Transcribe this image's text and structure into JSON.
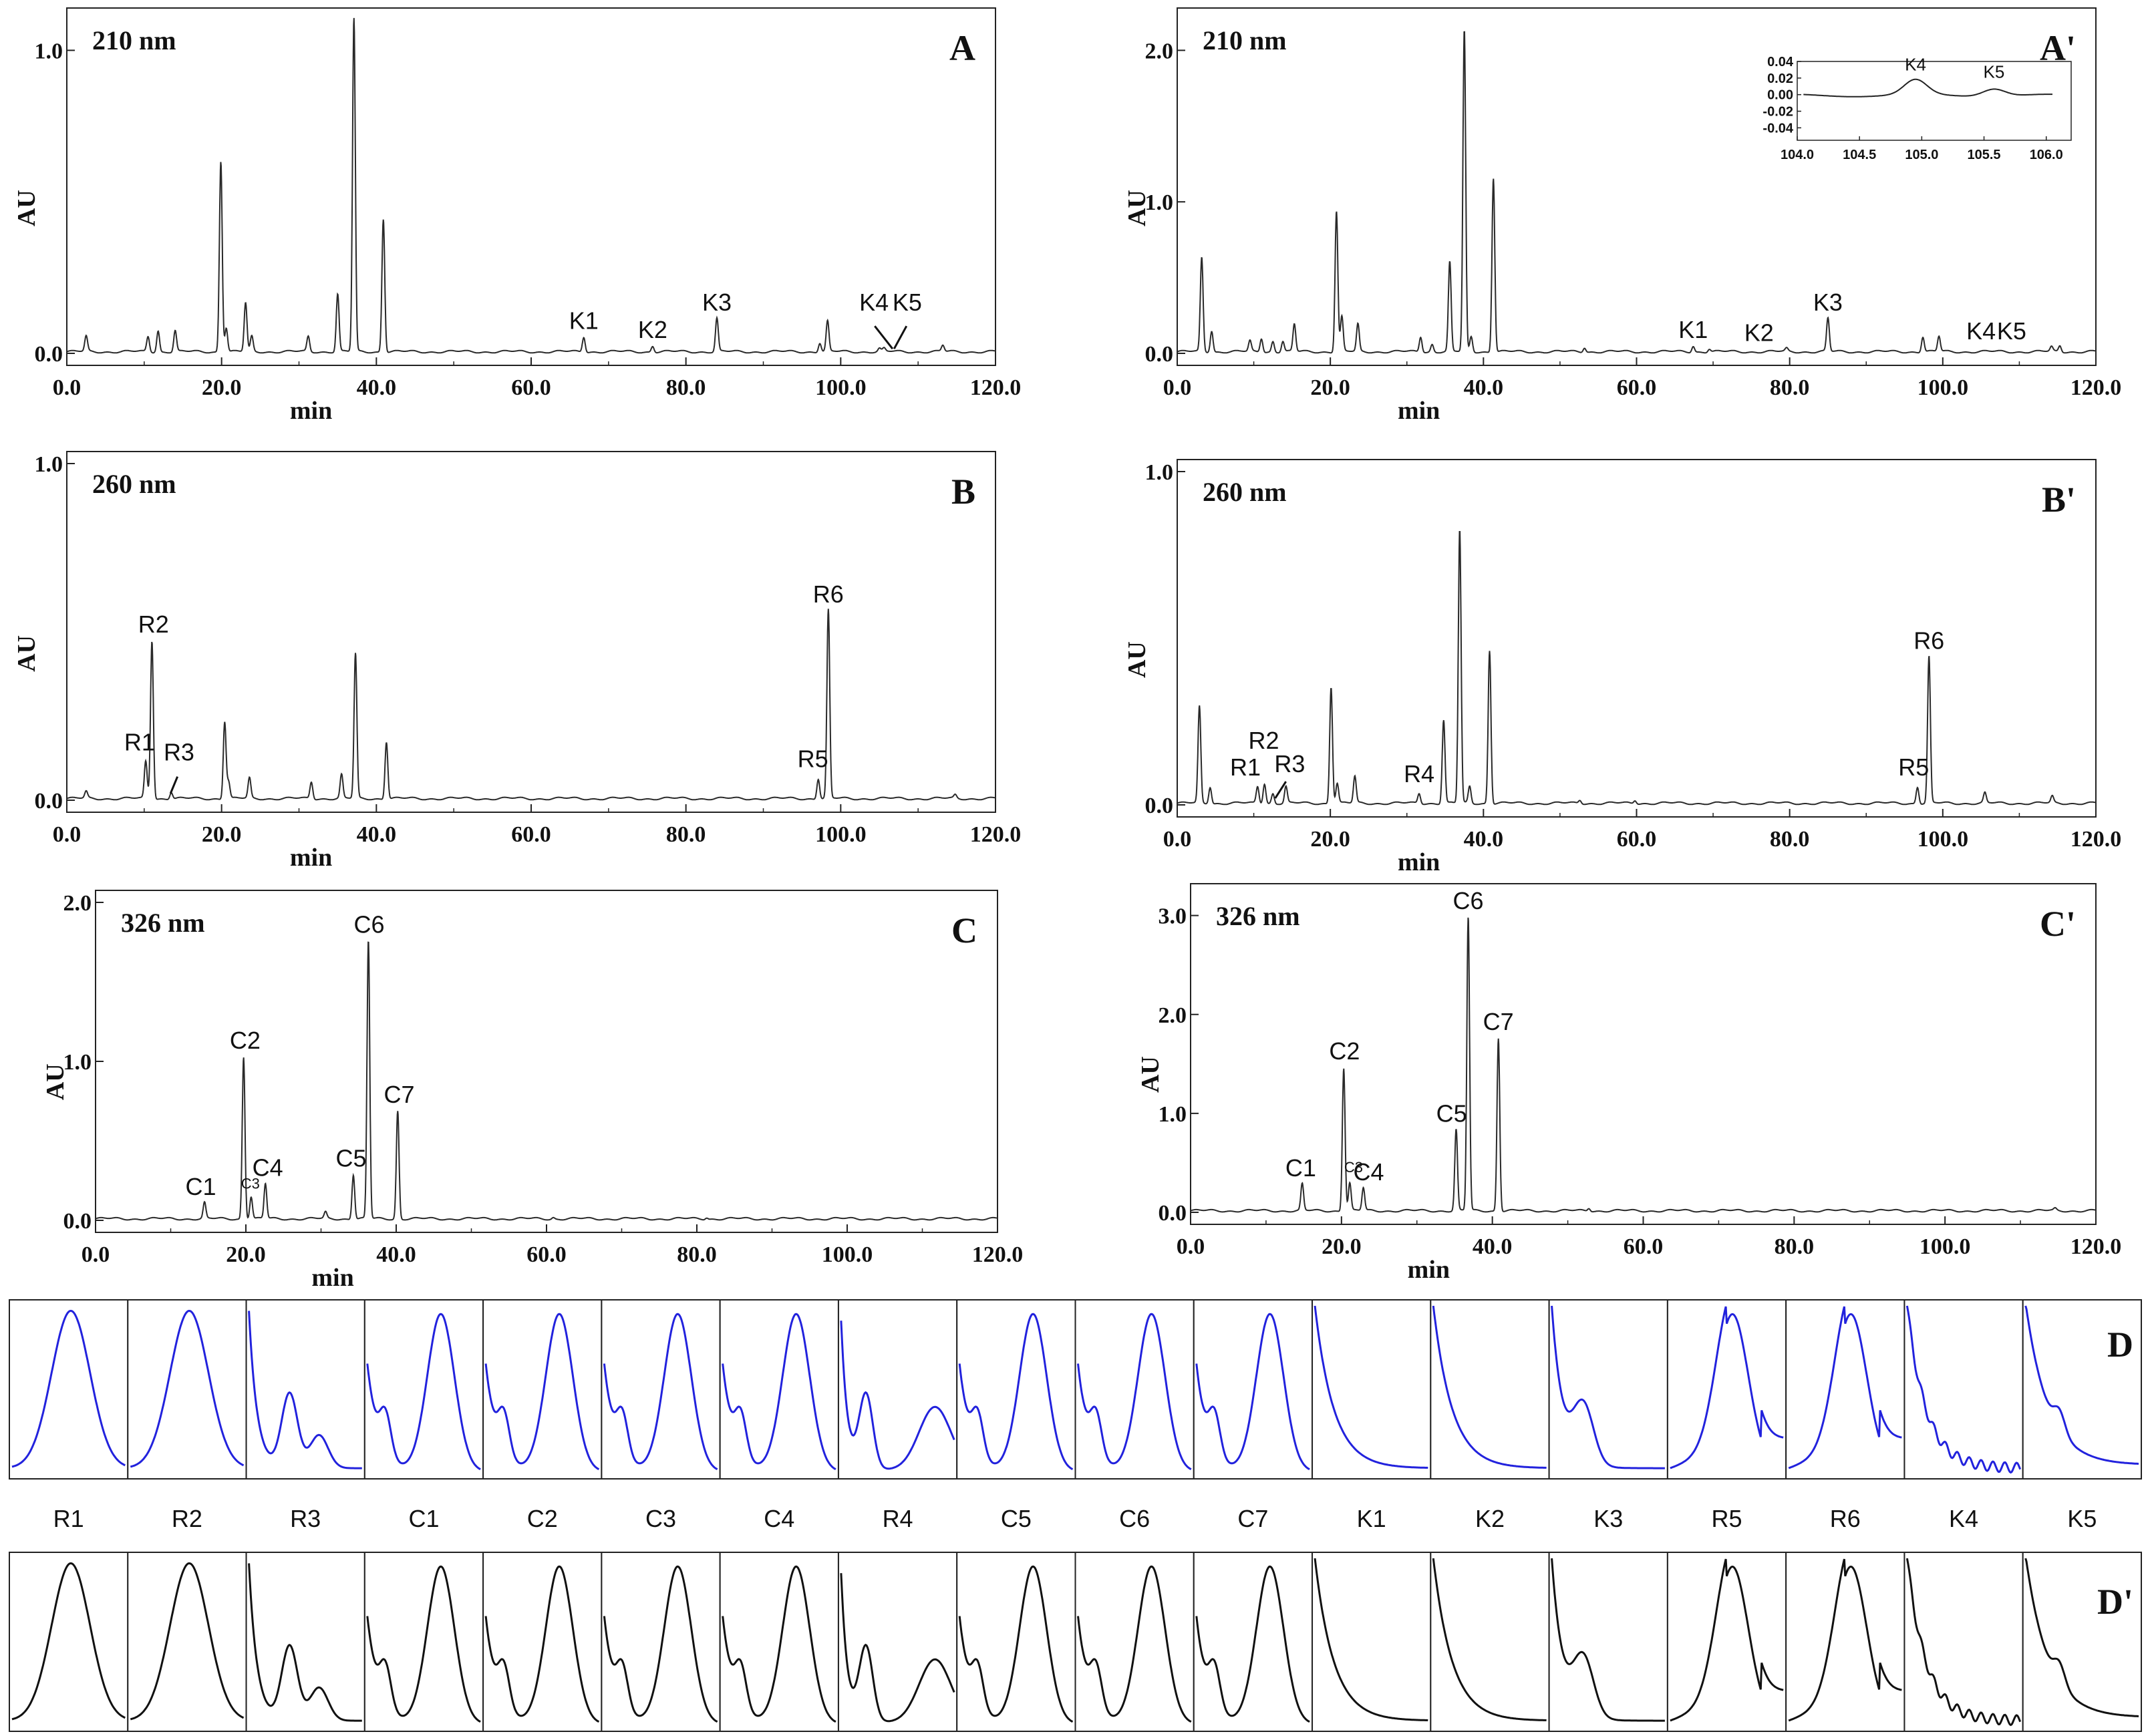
{
  "figure": {
    "spectra_row_letters": [
      "D",
      "D'"
    ]
  },
  "chart_data": [
    {
      "id": "A",
      "type": "line",
      "panel_label": "A",
      "wavelength": "210 nm",
      "xlabel": "min",
      "ylabel": "AU",
      "xlim": [
        0,
        120
      ],
      "ylim": [
        0,
        1.1
      ],
      "x_ticks": [
        "0.0",
        "20.0",
        "40.0",
        "60.0",
        "80.0",
        "100.0",
        "120.0"
      ],
      "y_ticks": [
        "0.0",
        "1.0"
      ],
      "peaks": [
        [
          2.5,
          0.05
        ],
        [
          10.5,
          0.05
        ],
        [
          11.8,
          0.07
        ],
        [
          14,
          0.07
        ],
        [
          19.9,
          0.63
        ],
        [
          20.6,
          0.08
        ],
        [
          23.1,
          0.16
        ],
        [
          23.9,
          0.05
        ],
        [
          31.2,
          0.05
        ],
        [
          35,
          0.19
        ],
        [
          37.1,
          1.1
        ],
        [
          40.9,
          0.44
        ],
        [
          66.8,
          0.05
        ],
        [
          75.7,
          0.02
        ],
        [
          84,
          0.11
        ],
        [
          97.3,
          0.03
        ],
        [
          98.3,
          0.1
        ],
        [
          105,
          0.01
        ],
        [
          105.6,
          0.01
        ],
        [
          113.2,
          0.02
        ]
      ],
      "labels": [
        {
          "text": "K1",
          "x": 66.8,
          "y": 0.05
        },
        {
          "text": "K2",
          "x": 75.7,
          "y": 0.02
        },
        {
          "text": "K3",
          "x": 84,
          "y": 0.11
        },
        {
          "text": "K4",
          "x": 104.3,
          "y": 0.11
        },
        {
          "text": "K5",
          "x": 108.6,
          "y": 0.11
        }
      ],
      "inset": {
        "xlim": [
          104,
          106.2
        ],
        "ylim": [
          -0.055,
          0.04
        ],
        "x_ticks": [
          "104.0",
          "104.5",
          "105.0",
          "105.5",
          "106.0"
        ],
        "y_ticks": [
          "0.04",
          "0.02",
          "0.00",
          "-0.02",
          "-0.04"
        ],
        "labels": []
      }
    },
    {
      "id": "A'",
      "type": "line",
      "panel_label": "A'",
      "wavelength": "210 nm",
      "xlabel": "min",
      "ylabel": "AU",
      "xlim": [
        0,
        120
      ],
      "ylim": [
        0,
        2.2
      ],
      "x_ticks": [
        "0.0",
        "20.0",
        "40.0",
        "60.0",
        "80.0",
        "100.0",
        "120.0"
      ],
      "y_ticks": [
        "0.0",
        "1.0",
        "2.0"
      ],
      "peaks": [
        [
          3.2,
          0.62
        ],
        [
          4.5,
          0.14
        ],
        [
          9.5,
          0.07
        ],
        [
          11,
          0.09
        ],
        [
          12.5,
          0.07
        ],
        [
          13.8,
          0.07
        ],
        [
          15.3,
          0.18
        ],
        [
          20.8,
          0.93
        ],
        [
          21.5,
          0.23
        ],
        [
          23.6,
          0.18
        ],
        [
          31.8,
          0.1
        ],
        [
          33.3,
          0.05
        ],
        [
          35.6,
          0.59
        ],
        [
          37.5,
          2.12
        ],
        [
          38.4,
          0.1
        ],
        [
          41.3,
          1.15
        ],
        [
          53.2,
          0.03
        ],
        [
          67.4,
          0.04
        ],
        [
          69.5,
          0.02
        ],
        [
          79.6,
          0.02
        ],
        [
          85,
          0.22
        ],
        [
          97.4,
          0.1
        ],
        [
          99.5,
          0.1
        ],
        [
          114.2,
          0.03
        ],
        [
          115.3,
          0.04
        ]
      ],
      "labels": [
        {
          "text": "K1",
          "x": 67.4,
          "y": 0.04
        },
        {
          "text": "K2",
          "x": 76,
          "y": 0.02
        },
        {
          "text": "K3",
          "x": 85,
          "y": 0.22
        },
        {
          "text": "K4",
          "x": 105,
          "y": 0.03
        },
        {
          "text": "K5",
          "x": 109,
          "y": 0.03
        }
      ],
      "inset": {
        "xlim": [
          104,
          106.2
        ],
        "ylim": [
          -0.055,
          0.04
        ],
        "x_ticks": [
          "104.0",
          "104.5",
          "105.0",
          "105.5",
          "106.0"
        ],
        "y_ticks": [
          "0.04",
          "0.02",
          "0.00",
          "-0.02",
          "-0.04"
        ],
        "peaks": [
          [
            104.95,
            0.018
          ],
          [
            105.58,
            0.009
          ]
        ],
        "labels": [
          {
            "text": "K4",
            "x": 104.95,
            "y": 0.018
          },
          {
            "text": "K5",
            "x": 105.58,
            "y": 0.009
          }
        ]
      }
    },
    {
      "id": "B",
      "type": "line",
      "panel_label": "B",
      "wavelength": "260 nm",
      "xlabel": "min",
      "ylabel": "AU",
      "xlim": [
        0,
        120
      ],
      "ylim": [
        0,
        1.0
      ],
      "x_ticks": [
        "0.0",
        "20.0",
        "40.0",
        "60.0",
        "80.0",
        "100.0",
        "120.0"
      ],
      "y_ticks": [
        "0.0",
        "1.0"
      ],
      "peaks": [
        [
          2.5,
          0.02
        ],
        [
          10.2,
          0.11
        ],
        [
          11,
          0.47
        ],
        [
          13.5,
          0.02
        ],
        [
          20.4,
          0.23
        ],
        [
          20.9,
          0.05
        ],
        [
          23.6,
          0.06
        ],
        [
          31.6,
          0.05
        ],
        [
          35.5,
          0.07
        ],
        [
          37.3,
          0.43
        ],
        [
          41.3,
          0.17
        ],
        [
          97.1,
          0.06
        ],
        [
          98.4,
          0.56
        ],
        [
          114.8,
          0.01
        ]
      ],
      "labels": [
        {
          "text": "R1",
          "x": 9.4,
          "y": 0.12
        },
        {
          "text": "R2",
          "x": 11.2,
          "y": 0.47
        },
        {
          "text": "R3",
          "x": 14.5,
          "y": 0.09
        },
        {
          "text": "R5",
          "x": 96.4,
          "y": 0.07
        },
        {
          "text": "R6",
          "x": 98.4,
          "y": 0.56
        }
      ]
    },
    {
      "id": "B'",
      "type": "line",
      "panel_label": "B'",
      "wavelength": "260 nm",
      "xlabel": "min",
      "ylabel": "AU",
      "xlim": [
        0,
        120
      ],
      "ylim": [
        0,
        1.0
      ],
      "x_ticks": [
        "0.0",
        "20.0",
        "40.0",
        "60.0",
        "80.0",
        "100.0",
        "120.0"
      ],
      "y_ticks": [
        "0.0",
        "1.0"
      ],
      "peaks": [
        [
          2.9,
          0.29
        ],
        [
          4.3,
          0.05
        ],
        [
          10.5,
          0.05
        ],
        [
          11.4,
          0.06
        ],
        [
          12.5,
          0.03
        ],
        [
          14.2,
          0.05
        ],
        [
          20.1,
          0.35
        ],
        [
          20.9,
          0.06
        ],
        [
          23.2,
          0.08
        ],
        [
          31.6,
          0.03
        ],
        [
          34.8,
          0.25
        ],
        [
          36.9,
          0.82
        ],
        [
          38.2,
          0.05
        ],
        [
          40.8,
          0.46
        ],
        [
          52.6,
          0.01
        ],
        [
          59.8,
          0.01
        ],
        [
          96.7,
          0.05
        ],
        [
          98.2,
          0.44
        ],
        [
          105.5,
          0.03
        ],
        [
          114.3,
          0.02
        ]
      ],
      "labels": [
        {
          "text": "R1",
          "x": 8.9,
          "y": 0.06
        },
        {
          "text": "R2",
          "x": 11.3,
          "y": 0.14
        },
        {
          "text": "R3",
          "x": 14.7,
          "y": 0.07
        },
        {
          "text": "R4",
          "x": 31.6,
          "y": 0.04
        },
        {
          "text": "R5",
          "x": 96.2,
          "y": 0.06
        },
        {
          "text": "R6",
          "x": 98.2,
          "y": 0.44
        }
      ]
    },
    {
      "id": "C",
      "type": "line",
      "panel_label": "C",
      "wavelength": "326 nm",
      "xlabel": "min",
      "ylabel": "AU",
      "xlim": [
        0,
        120
      ],
      "ylim": [
        0,
        2.0
      ],
      "x_ticks": [
        "0.0",
        "20.0",
        "40.0",
        "60.0",
        "80.0",
        "100.0",
        "120.0"
      ],
      "y_ticks": [
        "0.0",
        "1.0",
        "2.0"
      ],
      "peaks": [
        [
          14.5,
          0.1
        ],
        [
          19.7,
          1.02
        ],
        [
          20.7,
          0.14
        ],
        [
          22.6,
          0.22
        ],
        [
          30.6,
          0.04
        ],
        [
          34.3,
          0.28
        ],
        [
          36.3,
          1.75
        ],
        [
          40.2,
          0.68
        ],
        [
          60.9,
          0.01
        ],
        [
          81.3,
          0.01
        ]
      ],
      "labels": [
        {
          "text": "C1",
          "x": 14,
          "y": 0.1
        },
        {
          "text": "C2",
          "x": 19.9,
          "y": 1.02
        },
        {
          "text": "C3",
          "x": 20.6,
          "y": 0.14
        },
        {
          "text": "C4",
          "x": 22.9,
          "y": 0.22
        },
        {
          "text": "C5",
          "x": 34,
          "y": 0.28
        },
        {
          "text": "C6",
          "x": 36.4,
          "y": 1.75
        },
        {
          "text": "C7",
          "x": 40.4,
          "y": 0.68
        }
      ]
    },
    {
      "id": "C'",
      "type": "line",
      "panel_label": "C'",
      "wavelength": "326 nm",
      "xlabel": "min",
      "ylabel": "AU",
      "xlim": [
        0,
        120
      ],
      "ylim": [
        0,
        3.2
      ],
      "x_ticks": [
        "0.0",
        "20.0",
        "40.0",
        "60.0",
        "80.0",
        "100.0",
        "120.0"
      ],
      "y_ticks": [
        "0.0",
        "1.0",
        "2.0",
        "3.0"
      ],
      "peaks": [
        [
          14.8,
          0.27
        ],
        [
          20.3,
          1.45
        ],
        [
          21.1,
          0.28
        ],
        [
          22.9,
          0.23
        ],
        [
          35.2,
          0.82
        ],
        [
          36.8,
          2.97
        ],
        [
          40.8,
          1.75
        ],
        [
          52.8,
          0.03
        ],
        [
          114.6,
          0.02
        ]
      ],
      "labels": [
        {
          "text": "C1",
          "x": 14.6,
          "y": 0.27
        },
        {
          "text": "C2",
          "x": 20.4,
          "y": 1.45
        },
        {
          "text": "C3",
          "x": 21.6,
          "y": 0.31
        },
        {
          "text": "C4",
          "x": 23.6,
          "y": 0.23
        },
        {
          "text": "C5",
          "x": 34.6,
          "y": 0.82
        },
        {
          "text": "C6",
          "x": 36.8,
          "y": 2.97
        },
        {
          "text": "C7",
          "x": 40.8,
          "y": 1.75
        }
      ]
    }
  ],
  "spectra": {
    "labels": [
      "R1",
      "R2",
      "R3",
      "C1",
      "C2",
      "C3",
      "C4",
      "R4",
      "C5",
      "C6",
      "C7",
      "K1",
      "K2",
      "K3",
      "R5",
      "R6",
      "K4",
      "K5"
    ],
    "colors": {
      "D": "#2222dd",
      "D'": "#111111"
    },
    "shapes": [
      "bell",
      "bell",
      "r3",
      "caff",
      "caff",
      "caff",
      "caff",
      "r4",
      "caff",
      "caff",
      "caff",
      "decay",
      "decay",
      "shoulder",
      "bellShoulder",
      "bellShoulder",
      "decay",
      "decayBump"
    ]
  }
}
